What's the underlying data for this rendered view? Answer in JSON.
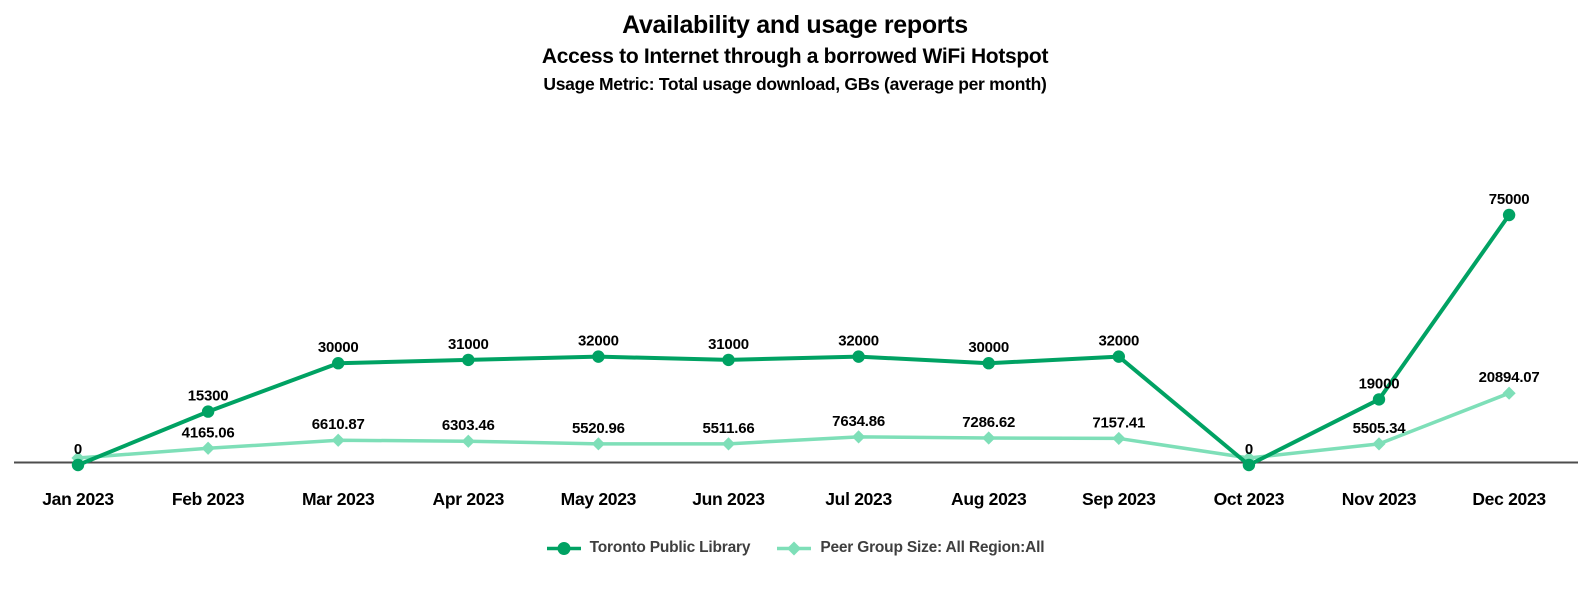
{
  "header": {
    "title": "Availability and usage reports",
    "subtitle": "Access to Internet through a borrowed WiFi Hotspot",
    "metric": "Usage Metric: Total usage download, GBs (average per month)"
  },
  "chart_data": {
    "type": "line",
    "title": "Availability and usage reports",
    "subtitle": "Access to Internet through a borrowed WiFi Hotspot",
    "usage_metric": "Usage Metric: Total usage download, GBs (average per month)",
    "categories": [
      "Jan 2023",
      "Feb 2023",
      "Mar 2023",
      "Apr 2023",
      "May 2023",
      "Jun 2023",
      "Jul 2023",
      "Aug 2023",
      "Sep 2023",
      "Oct 2023",
      "Nov 2023",
      "Dec 2023"
    ],
    "series": [
      {
        "name": "Toronto Public Library",
        "marker": "circle",
        "color": "#00A263",
        "values": [
          0,
          15300,
          30000,
          31000,
          32000,
          31000,
          32000,
          30000,
          32000,
          0,
          19000,
          75000
        ],
        "point_labels": [
          "0",
          "15300",
          "30000",
          "31000",
          "32000",
          "31000",
          "32000",
          "30000",
          "32000",
          "0",
          "19000",
          "75000"
        ]
      },
      {
        "name": "Peer Group Size: All Region:All",
        "marker": "diamond",
        "color": "#7EDFB8",
        "values": [
          0,
          4165.06,
          6610.87,
          6303.46,
          5520.96,
          5511.66,
          7634.86,
          7286.62,
          7157.41,
          0,
          5505.34,
          20894.07
        ],
        "point_labels": [
          "",
          "4165.06",
          "6610.87",
          "6303.46",
          "5520.96",
          "5511.66",
          "7634.86",
          "7286.62",
          "7157.41",
          "",
          "5505.34",
          "20894.07"
        ]
      }
    ],
    "xlabel": "",
    "ylabel": "",
    "ylim": [
      0,
      75000
    ],
    "grid": false,
    "y_axis_visible": false,
    "legend_position": "bottom",
    "axis_color": "#4D4D4D",
    "data_label_color": "#000000",
    "x_tick_label_color": "#000000"
  }
}
